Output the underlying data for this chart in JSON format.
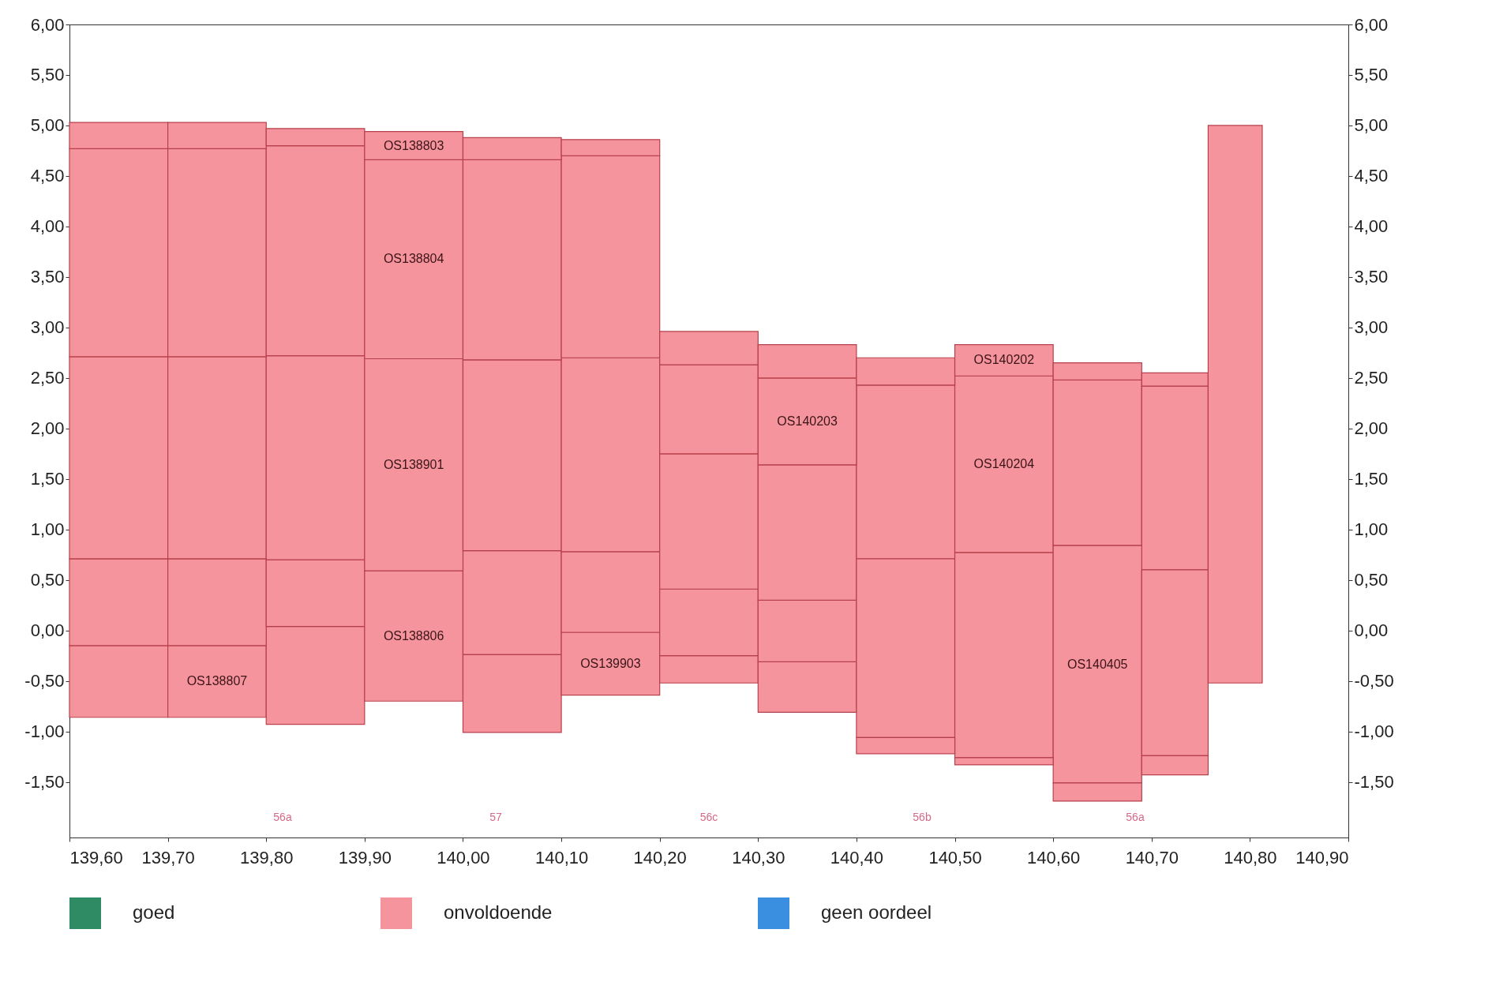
{
  "chart_data": {
    "type": "bar",
    "series": [
      {
        "name": "goed",
        "color": "#2e8b63"
      },
      {
        "name": "onvoldoende",
        "color": "#f5949c"
      },
      {
        "name": "geen oordeel",
        "color": "#3a8fe0"
      },
      {
        "name": "OS138807",
        "color": "#f5949c",
        "x": [
          139.65,
          139.75,
          139.85
        ],
        "base": [
          -0.86,
          -0.86,
          -0.93
        ],
        "values": [
          0.71,
          0.71,
          0.97
        ]
      },
      {
        "name": "OS138806",
        "color": "#f5949c",
        "x": [
          139.65,
          139.75,
          139.85,
          139.95,
          140.05,
          140.15
        ],
        "base": [
          -0.15,
          -0.15,
          0.04,
          -0.7,
          -0.24,
          -0.02
        ],
        "values": [
          0.86,
          0.86,
          0.66,
          1.29,
          1.03,
          0.8
        ]
      },
      {
        "name": "OS139903",
        "color": "#f5949c",
        "x": [
          140.05,
          140.15
        ],
        "base": [
          -1.01,
          -0.64
        ],
        "values": [
          0.77,
          0.62
        ]
      },
      {
        "name": "OS138901",
        "color": "#f5949c",
        "x": [
          139.65,
          139.75,
          139.85,
          139.95,
          140.05,
          140.15
        ],
        "base": [
          0.71,
          0.71,
          0.7,
          0.59,
          0.79,
          0.78
        ],
        "values": [
          2.0,
          2.0,
          2.02,
          2.1,
          1.89,
          1.92
        ]
      },
      {
        "name": "OS138804",
        "color": "#f5949c",
        "x": [
          139.65,
          139.75,
          139.85,
          139.95,
          140.05,
          140.15
        ],
        "base": [
          2.71,
          2.71,
          2.72,
          2.69,
          2.68,
          2.7
        ],
        "values": [
          2.06,
          2.06,
          2.08,
          1.97,
          1.98,
          2.0
        ]
      },
      {
        "name": "OS138803",
        "color": "#f5949c",
        "x": [
          139.65,
          139.75,
          139.85,
          139.95,
          140.05,
          140.15
        ],
        "base": [
          4.77,
          4.77,
          4.8,
          4.66,
          4.66,
          4.7
        ],
        "values": [
          0.26,
          0.26,
          0.17,
          0.28,
          0.22,
          0.16
        ]
      },
      {
        "color": "#f5949c",
        "x": [
          140.25,
          140.35
        ],
        "base": [
          -0.52,
          -0.81
        ],
        "values": [
          0.27,
          0.5
        ]
      },
      {
        "color": "#f5949c",
        "x": [
          140.25,
          140.35
        ],
        "base": [
          -0.25,
          -0.31
        ],
        "values": [
          0.66,
          0.61
        ]
      },
      {
        "name": "OS140204",
        "color": "#f5949c",
        "x": [
          140.25,
          140.35,
          140.45,
          140.55,
          140.65,
          140.73
        ],
        "base": [
          0.41,
          0.3,
          0.71,
          0.77,
          0.84,
          0.6
        ],
        "values": [
          1.34,
          1.34,
          1.72,
          1.75,
          1.64,
          1.82
        ]
      },
      {
        "name": "OS140203",
        "color": "#f5949c",
        "x": [
          140.25,
          140.35
        ],
        "base": [
          1.75,
          1.64
        ],
        "values": [
          0.88,
          0.86
        ]
      },
      {
        "name": "OS140202",
        "color": "#f5949c",
        "x": [
          140.25,
          140.35,
          140.45,
          140.55,
          140.65,
          140.73
        ],
        "base": [
          2.63,
          2.5,
          2.43,
          2.52,
          2.48,
          2.42
        ],
        "values": [
          0.33,
          0.33,
          0.27,
          0.31,
          0.17,
          0.13
        ]
      },
      {
        "name": "OS140405",
        "color": "#f5949c",
        "x": [
          140.45,
          140.55,
          140.65,
          140.73
        ],
        "base": [
          -1.06,
          -1.26,
          -1.51,
          -1.24
        ],
        "values": [
          1.77,
          2.03,
          2.35,
          1.84
        ]
      },
      {
        "color": "#f5949c",
        "x": [
          140.45,
          140.55,
          140.65,
          140.73
        ],
        "base": [
          -1.22,
          -1.33,
          -1.69,
          -1.43
        ],
        "values": [
          0.16,
          0.07,
          0.18,
          0.19
        ]
      },
      {
        "color": "#f5949c",
        "x": [
          140.785
        ],
        "base": [
          -0.52
        ],
        "values": [
          5.52
        ]
      }
    ],
    "xlim": [
      139.6,
      140.9
    ],
    "xticks": [
      {
        "value": 139.6,
        "label": "139,60"
      },
      {
        "value": 139.7,
        "label": "139,70"
      },
      {
        "value": 139.8,
        "label": "139,80"
      },
      {
        "value": 139.9,
        "label": "139,90"
      },
      {
        "value": 140.0,
        "label": "140,00"
      },
      {
        "value": 140.1,
        "label": "140,10"
      },
      {
        "value": 140.2,
        "label": "140,20"
      },
      {
        "value": 140.3,
        "label": "140,30"
      },
      {
        "value": 140.4,
        "label": "140,40"
      },
      {
        "value": 140.5,
        "label": "140,50"
      },
      {
        "value": 140.6,
        "label": "140,60"
      },
      {
        "value": 140.7,
        "label": "140,70"
      },
      {
        "value": 140.8,
        "label": "140,80"
      },
      {
        "value": 140.9,
        "label": "140,90"
      }
    ],
    "ylim": [
      -2.05,
      6
    ],
    "yticks": [
      {
        "value": -1.5,
        "label": "-1,50"
      },
      {
        "value": -1,
        "label": "-1,00"
      },
      {
        "value": -0.5,
        "label": "-0,50"
      },
      {
        "value": 0,
        "label": "0,00"
      },
      {
        "value": 0.5,
        "label": "0,50"
      },
      {
        "value": 1,
        "label": "1,00"
      },
      {
        "value": 1.5,
        "label": "1,50"
      },
      {
        "value": 2,
        "label": "2,00"
      },
      {
        "value": 2.5,
        "label": "2,50"
      },
      {
        "value": 3,
        "label": "3,00"
      },
      {
        "value": 3.5,
        "label": "3,50"
      },
      {
        "value": 4,
        "label": "4,00"
      },
      {
        "value": 4.5,
        "label": "4,50"
      },
      {
        "value": 5,
        "label": "5,00"
      },
      {
        "value": 5.5,
        "label": "5,50"
      },
      {
        "value": 6,
        "label": "6,00"
      }
    ],
    "y2lim": [
      -2.05,
      6
    ],
    "y2ticks": [
      {
        "value": -1.5,
        "label": "-1,50"
      },
      {
        "value": -1,
        "label": "-1,00"
      },
      {
        "value": -0.5,
        "label": "-0,50"
      },
      {
        "value": 0,
        "label": "0,00"
      },
      {
        "value": 0.5,
        "label": "0,50"
      },
      {
        "value": 1,
        "label": "1,00"
      },
      {
        "value": 1.5,
        "label": "1,50"
      },
      {
        "value": 2,
        "label": "2,00"
      },
      {
        "value": 2.5,
        "label": "2,50"
      },
      {
        "value": 3,
        "label": "3,00"
      },
      {
        "value": 3.5,
        "label": "3,50"
      },
      {
        "value": 4,
        "label": "4,00"
      },
      {
        "value": 4.5,
        "label": "4,50"
      },
      {
        "value": 5,
        "label": "5,00"
      },
      {
        "value": 5.5,
        "label": "5,50"
      },
      {
        "value": 6,
        "label": "6,00"
      }
    ],
    "legend": "bottom",
    "annotations": [
      "56a",
      "57",
      "56c",
      "56b",
      "56a"
    ]
  }
}
